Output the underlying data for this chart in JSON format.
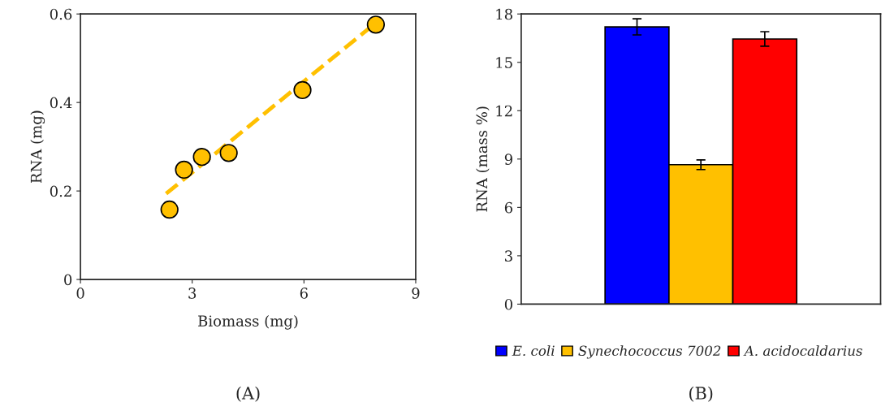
{
  "chart_data": [
    {
      "type": "scatter",
      "xlabel": "Biomass (mg)",
      "ylabel": "RNA (mg)",
      "xlim": [
        0,
        9
      ],
      "xticks": [
        0,
        3,
        6,
        9
      ],
      "ylim": [
        0,
        0.6
      ],
      "yticks": [
        0,
        0.2,
        0.4,
        0.6
      ],
      "grid": false,
      "annotations": [
        "(A)"
      ],
      "series": [
        {
          "type": "line",
          "x": [
            2.3,
            7.93
          ],
          "values": [
            0.194,
            0.58
          ],
          "color": "#ffc000",
          "line_style": "dashed",
          "marker": "none"
        },
        {
          "type": "scatter",
          "x": [
            2.39,
            2.78,
            3.26,
            3.98,
            5.96,
            7.93
          ],
          "values": [
            0.158,
            0.248,
            0.277,
            0.286,
            0.428,
            0.576
          ],
          "color": "#ffc000",
          "marker": "circle"
        }
      ]
    },
    {
      "type": "bar",
      "ylabel": "RNA (mass %)",
      "categories": [
        null
      ],
      "ylim": [
        0,
        18
      ],
      "yticks": [
        0,
        3,
        6,
        9,
        12,
        15,
        18
      ],
      "grid": false,
      "legend": "bottom",
      "annotations": [
        "(B)"
      ],
      "series": [
        {
          "name": "E. coli",
          "color": "#0000ff",
          "values": [
            17.2
          ],
          "errors": [
            0.5
          ]
        },
        {
          "name": "Synechococcus 7002",
          "color": "#ffc000",
          "values": [
            8.65
          ],
          "errors": [
            0.3
          ]
        },
        {
          "name": "A. acidocaldarius",
          "color": "#ff0000",
          "values": [
            16.45
          ],
          "errors": [
            0.45
          ]
        }
      ]
    }
  ]
}
